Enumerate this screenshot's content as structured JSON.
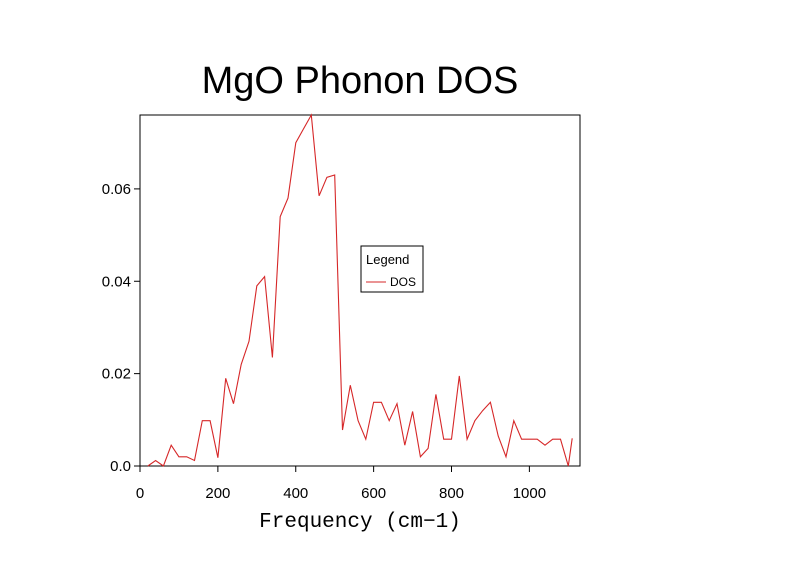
{
  "chart_data": {
    "type": "line",
    "title": "MgO Phonon DOS",
    "xlabel": "Frequency (cm−1)",
    "ylabel": "",
    "xlim": [
      0,
      1130
    ],
    "ylim": [
      0,
      0.076
    ],
    "xticks": [
      0,
      200,
      400,
      600,
      800,
      1000
    ],
    "yticks": [
      0.0,
      0.02,
      0.04,
      0.06
    ],
    "xtick_labels": [
      "0",
      "200",
      "400",
      "600",
      "800",
      "1000"
    ],
    "ytick_labels": [
      "0.0",
      "0.02",
      "0.04",
      "0.06"
    ],
    "grid": false,
    "legend": {
      "title": "Legend",
      "position": "center-right"
    },
    "series": [
      {
        "name": "DOS",
        "color": "#d62728",
        "x": [
          20,
          40,
          60,
          80,
          100,
          120,
          140,
          160,
          180,
          200,
          220,
          240,
          260,
          280,
          300,
          320,
          340,
          360,
          380,
          400,
          420,
          440,
          460,
          480,
          500,
          520,
          540,
          560,
          580,
          600,
          620,
          640,
          660,
          680,
          700,
          720,
          740,
          760,
          780,
          800,
          820,
          840,
          860,
          880,
          900,
          920,
          940,
          960,
          980,
          1000,
          1020,
          1040,
          1060,
          1080,
          1100,
          1110
        ],
        "y": [
          0.0,
          0.0012,
          0.0,
          0.0045,
          0.002,
          0.002,
          0.0012,
          0.0098,
          0.0098,
          0.0018,
          0.019,
          0.0135,
          0.022,
          0.027,
          0.039,
          0.041,
          0.0235,
          0.054,
          0.058,
          0.07,
          0.073,
          0.076,
          0.0585,
          0.0625,
          0.063,
          0.0078,
          0.0175,
          0.0098,
          0.0058,
          0.0138,
          0.0138,
          0.0098,
          0.0135,
          0.0045,
          0.0118,
          0.002,
          0.0038,
          0.0155,
          0.0058,
          0.0058,
          0.0195,
          0.0058,
          0.0098,
          0.012,
          0.0138,
          0.0065,
          0.002,
          0.0098,
          0.0058,
          0.0058,
          0.0058,
          0.0045,
          0.0058,
          0.0058,
          0.0,
          0.006
        ]
      }
    ]
  }
}
